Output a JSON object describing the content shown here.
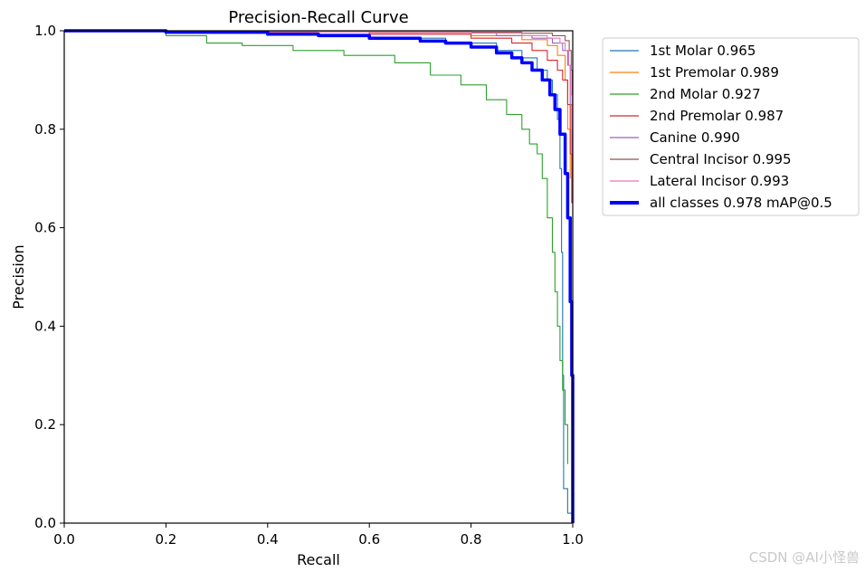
{
  "chart_data": {
    "type": "line",
    "title": "Precision-Recall Curve",
    "xlabel": "Recall",
    "ylabel": "Precision",
    "xlim": [
      0,
      1
    ],
    "ylim": [
      0,
      1
    ],
    "xticks": [
      "0.0",
      "0.2",
      "0.4",
      "0.6",
      "0.8",
      "1.0"
    ],
    "yticks": [
      "0.0",
      "0.2",
      "0.4",
      "0.6",
      "0.8",
      "1.0"
    ],
    "legend_position": "outside-right",
    "series": [
      {
        "name": "1st Molar",
        "legend_label": "1st Molar 0.965",
        "color": "#1f77b4",
        "thick": false,
        "points": [
          [
            0,
            1
          ],
          [
            0.2,
            0.998
          ],
          [
            0.4,
            0.993
          ],
          [
            0.6,
            0.985
          ],
          [
            0.75,
            0.975
          ],
          [
            0.85,
            0.96
          ],
          [
            0.9,
            0.945
          ],
          [
            0.93,
            0.92
          ],
          [
            0.95,
            0.9
          ],
          [
            0.96,
            0.87
          ],
          [
            0.97,
            0.82
          ],
          [
            0.975,
            0.72
          ],
          [
            0.978,
            0.55
          ],
          [
            0.98,
            0.3
          ],
          [
            0.982,
            0.07
          ],
          [
            0.99,
            0.02
          ],
          [
            1.0,
            0.0
          ]
        ]
      },
      {
        "name": "1st Premolar",
        "legend_label": "1st Premolar 0.989",
        "color": "#ff7f0e",
        "thick": false,
        "points": [
          [
            0,
            1
          ],
          [
            0.3,
            0.998
          ],
          [
            0.6,
            0.996
          ],
          [
            0.8,
            0.99
          ],
          [
            0.9,
            0.982
          ],
          [
            0.95,
            0.97
          ],
          [
            0.97,
            0.95
          ],
          [
            0.985,
            0.9
          ],
          [
            0.99,
            0.8
          ],
          [
            0.995,
            0.7
          ]
        ]
      },
      {
        "name": "2nd Molar",
        "legend_label": "2nd Molar 0.927",
        "color": "#2ca02c",
        "thick": false,
        "points": [
          [
            0,
            1
          ],
          [
            0.2,
            0.99
          ],
          [
            0.28,
            0.975
          ],
          [
            0.35,
            0.97
          ],
          [
            0.45,
            0.96
          ],
          [
            0.55,
            0.95
          ],
          [
            0.65,
            0.935
          ],
          [
            0.72,
            0.91
          ],
          [
            0.78,
            0.89
          ],
          [
            0.83,
            0.86
          ],
          [
            0.87,
            0.83
          ],
          [
            0.9,
            0.8
          ],
          [
            0.915,
            0.77
          ],
          [
            0.93,
            0.75
          ],
          [
            0.94,
            0.7
          ],
          [
            0.95,
            0.62
          ],
          [
            0.96,
            0.55
          ],
          [
            0.965,
            0.47
          ],
          [
            0.97,
            0.4
          ],
          [
            0.975,
            0.33
          ],
          [
            0.98,
            0.27
          ],
          [
            0.985,
            0.2
          ],
          [
            0.99,
            0.12
          ]
        ]
      },
      {
        "name": "2nd Premolar",
        "legend_label": "2nd Premolar 0.987",
        "color": "#d62728",
        "thick": false,
        "points": [
          [
            0,
            1
          ],
          [
            0.3,
            0.998
          ],
          [
            0.6,
            0.993
          ],
          [
            0.8,
            0.985
          ],
          [
            0.88,
            0.975
          ],
          [
            0.92,
            0.96
          ],
          [
            0.95,
            0.94
          ],
          [
            0.97,
            0.92
          ],
          [
            0.98,
            0.9
          ],
          [
            0.99,
            0.85
          ],
          [
            0.995,
            0.75
          ],
          [
            0.998,
            0.65
          ]
        ]
      },
      {
        "name": "Canine",
        "legend_label": "Canine 0.990",
        "color": "#9467bd",
        "thick": false,
        "points": [
          [
            0,
            1
          ],
          [
            0.3,
            0.999
          ],
          [
            0.6,
            0.997
          ],
          [
            0.85,
            0.99
          ],
          [
            0.92,
            0.985
          ],
          [
            0.96,
            0.975
          ],
          [
            0.98,
            0.96
          ],
          [
            0.99,
            0.93
          ],
          [
            0.995,
            0.85
          ],
          [
            0.998,
            0.75
          ]
        ]
      },
      {
        "name": "Central Incisor",
        "legend_label": "Central Incisor 0.995",
        "color": "#8c564b",
        "thick": false,
        "points": [
          [
            0,
            1
          ],
          [
            0.5,
            0.999
          ],
          [
            0.8,
            0.997
          ],
          [
            0.9,
            0.995
          ],
          [
            0.96,
            0.99
          ],
          [
            0.985,
            0.98
          ],
          [
            0.993,
            0.96
          ],
          [
            0.997,
            0.92
          ],
          [
            0.999,
            0.85
          ]
        ]
      },
      {
        "name": "Lateral Incisor",
        "legend_label": "Lateral Incisor 0.993",
        "color": "#e377c2",
        "thick": false,
        "points": [
          [
            0,
            1
          ],
          [
            0.5,
            0.998
          ],
          [
            0.8,
            0.995
          ],
          [
            0.9,
            0.99
          ],
          [
            0.95,
            0.985
          ],
          [
            0.975,
            0.975
          ],
          [
            0.985,
            0.96
          ],
          [
            0.992,
            0.93
          ],
          [
            0.996,
            0.87
          ],
          [
            0.999,
            0.8
          ]
        ]
      },
      {
        "name": "all classes",
        "legend_label": "all classes 0.978 mAP@0.5",
        "color": "#0000ff",
        "thick": true,
        "points": [
          [
            0,
            1
          ],
          [
            0.2,
            0.997
          ],
          [
            0.4,
            0.993
          ],
          [
            0.5,
            0.99
          ],
          [
            0.6,
            0.985
          ],
          [
            0.7,
            0.979
          ],
          [
            0.75,
            0.975
          ],
          [
            0.8,
            0.967
          ],
          [
            0.85,
            0.955
          ],
          [
            0.88,
            0.945
          ],
          [
            0.9,
            0.935
          ],
          [
            0.92,
            0.92
          ],
          [
            0.94,
            0.9
          ],
          [
            0.955,
            0.87
          ],
          [
            0.965,
            0.84
          ],
          [
            0.975,
            0.79
          ],
          [
            0.985,
            0.71
          ],
          [
            0.99,
            0.62
          ],
          [
            0.995,
            0.45
          ],
          [
            0.998,
            0.3
          ],
          [
            1.0,
            0.0
          ]
        ]
      }
    ]
  },
  "watermark": "CSDN @AI小怪兽"
}
